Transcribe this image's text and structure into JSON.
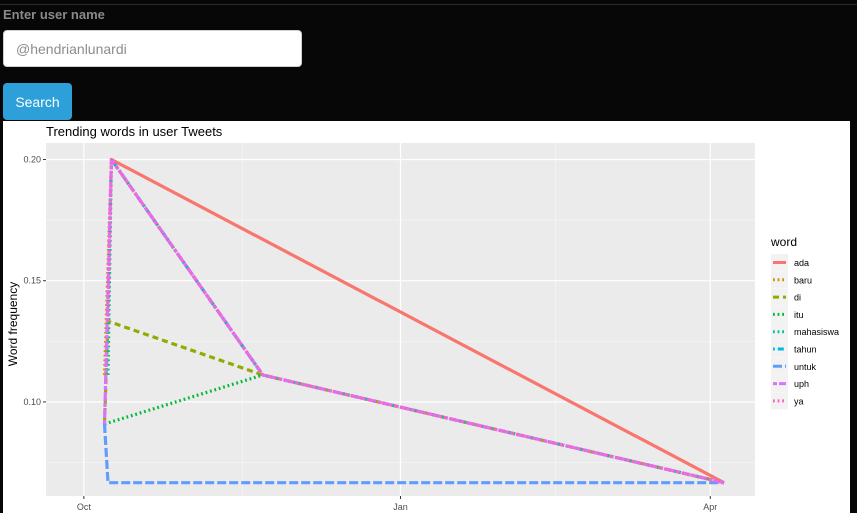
{
  "form": {
    "label": "Enter user name",
    "placeholder": "@hendrianlunardi",
    "search_label": "Search"
  },
  "chart_data": {
    "type": "line",
    "title": "Trending words in user Tweets",
    "xlabel": "",
    "ylabel": "Word frequency",
    "x_ticks": [
      "Oct",
      "Jan",
      "Apr"
    ],
    "x_tick_dates": [
      "2016-10-01",
      "2017-01-01",
      "2017-04-01"
    ],
    "xlim": [
      "2016-09-20",
      "2017-04-14"
    ],
    "y_ticks": [
      0.1,
      0.15,
      0.2
    ],
    "y_tick_labels": [
      "0.10",
      "0.15",
      "0.20"
    ],
    "ylim": [
      0.0612,
      0.2068
    ],
    "grid": true,
    "panel_background": "#ebebeb",
    "legend_title": "word",
    "legend_position": "right",
    "series": [
      {
        "name": "ada",
        "color": "#f8766d",
        "dash": "solid",
        "x": [
          "2016-10-09",
          "2017-04-05"
        ],
        "y": [
          0.2,
          0.0667
        ]
      },
      {
        "name": "baru",
        "color": "#d39200",
        "dash": "dotted",
        "x": [
          "2016-10-07",
          "2016-10-09",
          "2016-11-22",
          "2017-04-05"
        ],
        "y": [
          0.1111,
          0.2,
          0.1111,
          0.0667
        ]
      },
      {
        "name": "di",
        "color": "#93aa00",
        "dash": "dashed",
        "x": [
          "2016-10-07",
          "2016-10-08",
          "2016-11-22",
          "2017-04-05"
        ],
        "y": [
          0.0909,
          0.1333,
          0.1111,
          0.0667
        ]
      },
      {
        "name": "itu",
        "color": "#00ba38",
        "dash": "dotted",
        "x": [
          "2016-10-07",
          "2016-11-22"
        ],
        "y": [
          0.0909,
          0.1111
        ]
      },
      {
        "name": "mahasiswa",
        "color": "#00c19f",
        "dash": "dotted",
        "x": [
          "2016-10-08",
          "2016-10-09",
          "2016-11-22",
          "2017-04-05"
        ],
        "y": [
          0.1111,
          0.2,
          0.1111,
          0.0667
        ]
      },
      {
        "name": "tahun",
        "color": "#00b9e3",
        "dash": "dotdash",
        "x": [
          "2016-10-09",
          "2016-11-22"
        ],
        "y": [
          0.2,
          0.1111
        ]
      },
      {
        "name": "untuk",
        "color": "#619cff",
        "dash": "longdash",
        "x": [
          "2016-10-07",
          "2016-10-08",
          "2017-04-05"
        ],
        "y": [
          0.0909,
          0.0667,
          0.0667
        ]
      },
      {
        "name": "uph",
        "color": "#db72fb",
        "dash": "twodash",
        "x": [
          "2016-10-07",
          "2016-10-09",
          "2016-11-22",
          "2017-04-05"
        ],
        "y": [
          0.0909,
          0.2,
          0.1111,
          0.0667
        ]
      },
      {
        "name": "ya",
        "color": "#ff61c3",
        "dash": "dotted",
        "x": [
          "2016-10-08",
          "2016-10-09",
          "2016-11-22",
          "2017-04-05"
        ],
        "y": [
          0.1333,
          0.2,
          0.1111,
          0.0667
        ]
      }
    ]
  }
}
